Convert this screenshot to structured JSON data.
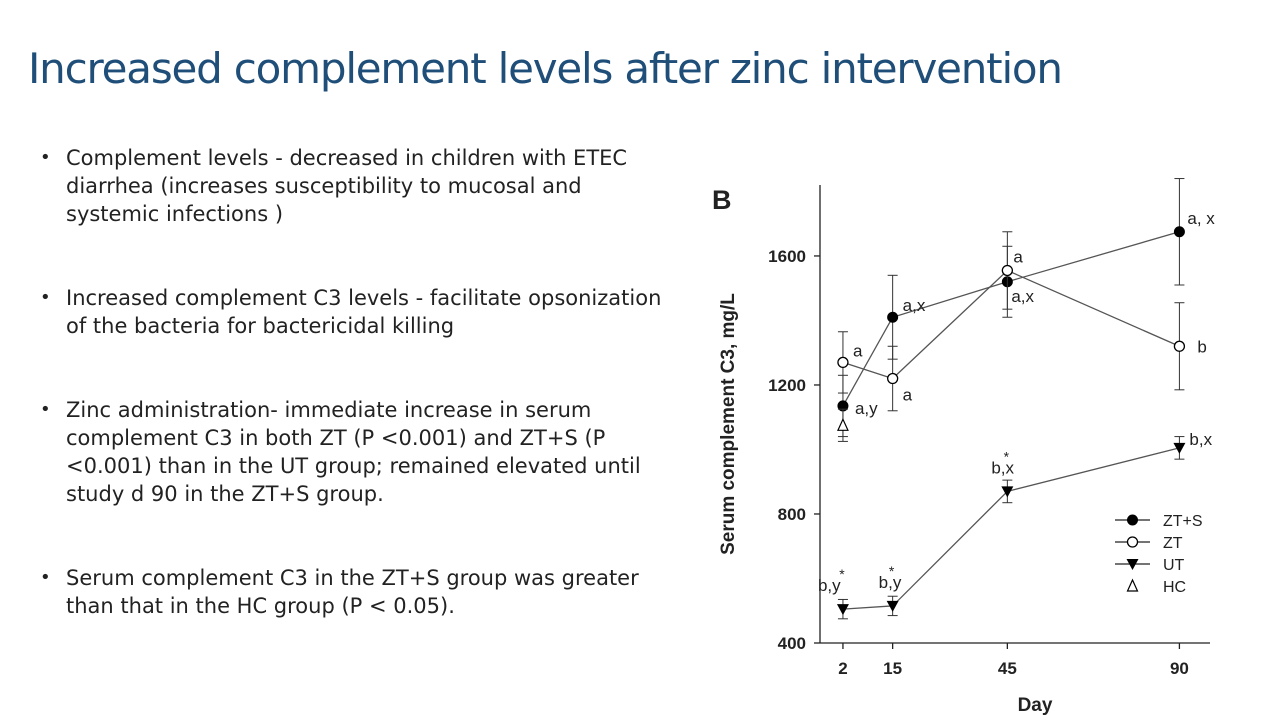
{
  "slide": {
    "title": "Increased complement levels after zinc intervention",
    "bullets": [
      "Complement levels - decreased in children with ETEC diarrhea (increases susceptibility to mucosal and systemic infections )",
      "Increased complement C3 levels - facilitate opsonization of the bacteria for bactericidal killing",
      "Zinc administration- immediate increase in serum complement C3 in both ZT (P <0.001) and ZT+S (P <0.001) than in the UT group; remained elevated until study d 90 in the ZT+S group.",
      "Serum complement C3 in the ZT+S group was greater than that in the HC group (P < 0.05)."
    ],
    "bullet_symbol": "•"
  },
  "chart_data": {
    "type": "line",
    "panel_label": "B",
    "xlabel": "Day",
    "ylabel": "Serum complement C3, mg/L",
    "x": [
      2,
      15,
      45,
      90
    ],
    "x_ticks": [
      "2",
      "15",
      "45",
      "90"
    ],
    "y_ticks": [
      "400",
      "800",
      "1200",
      "1600"
    ],
    "ylim": [
      400,
      1820
    ],
    "legend_position": "lower-right",
    "series": [
      {
        "name": "ZT+S",
        "marker": "filled-circle",
        "values": [
          1135,
          1410,
          1520,
          1675
        ],
        "errors": [
          95,
          130,
          110,
          165
        ],
        "labels": [
          "a,y",
          "a,x",
          "a,x",
          "a, x"
        ]
      },
      {
        "name": "ZT",
        "marker": "open-circle",
        "values": [
          1270,
          1220,
          1555,
          1320
        ],
        "errors": [
          95,
          100,
          120,
          135
        ],
        "labels": [
          "a",
          "a",
          "a",
          "b"
        ]
      },
      {
        "name": "UT",
        "marker": "filled-triangle-down",
        "values": [
          505,
          515,
          870,
          1005
        ],
        "errors": [
          30,
          30,
          35,
          35
        ],
        "labels": [
          "b,y",
          "b,y",
          "b,x",
          "b,x"
        ],
        "stars": [
          "*",
          "*",
          "*",
          ""
        ]
      },
      {
        "name": "HC",
        "marker": "open-triangle-up",
        "values": [
          1075
        ],
        "x": [
          2
        ],
        "errors": [
          50
        ],
        "labels": [
          ""
        ]
      }
    ]
  }
}
